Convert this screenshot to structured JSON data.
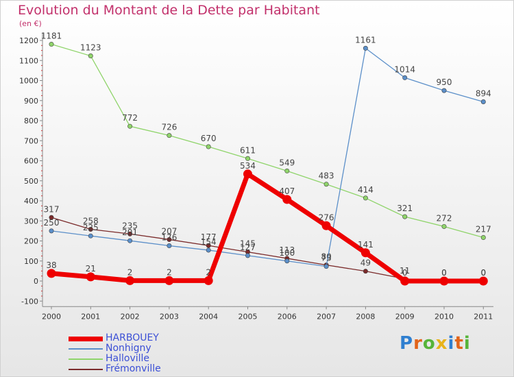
{
  "chart_data": {
    "type": "line",
    "title": "Evolution du Montant de la Dette par Habitant",
    "unit_label": "(en €)",
    "categories": [
      "2000",
      "2001",
      "2002",
      "2003",
      "2004",
      "2005",
      "2006",
      "2007",
      "2008",
      "2009",
      "2010",
      "2011"
    ],
    "y_ticks": [
      "-100",
      "0",
      "100",
      "200",
      "300",
      "400",
      "500",
      "600",
      "700",
      "800",
      "900",
      "1000",
      "1100",
      "1200"
    ],
    "ylim": [
      -100,
      1200
    ],
    "grid": false,
    "legend_position": "bottom-left",
    "series": [
      {
        "name": "Frémonville",
        "color": "#7a2a2a",
        "values": [
          317,
          258,
          235,
          207,
          177,
          145,
          113,
          80,
          49,
          11,
          0,
          0
        ],
        "labels": [
          "317",
          "258",
          "235",
          "207",
          "177",
          "145",
          "113",
          "80",
          "49",
          "11",
          "0",
          "0"
        ]
      },
      {
        "name": "Halloville",
        "color": "#8fd46a",
        "values": [
          1181,
          1123,
          772,
          726,
          670,
          611,
          549,
          483,
          414,
          321,
          272,
          217
        ],
        "labels": [
          "1181",
          "1123",
          "772",
          "726",
          "670",
          "611",
          "549",
          "483",
          "414",
          "321",
          "272",
          "217"
        ]
      },
      {
        "name": "Nonhigny",
        "color": "#5b8fc9",
        "values": [
          250,
          225,
          201,
          176,
          154,
          127,
          100,
          73,
          1161,
          1014,
          950,
          894
        ],
        "labels": [
          "250",
          "225",
          "201",
          "176",
          "154",
          "127",
          "100",
          "73",
          "1161",
          "1014",
          "950",
          "894"
        ]
      },
      {
        "name": "HARBOUEY",
        "color": "#ee0000",
        "values": [
          38,
          21,
          2,
          2,
          2,
          534,
          407,
          276,
          141,
          0,
          0,
          0
        ],
        "labels": [
          "38",
          "21",
          "2",
          "2",
          "2",
          "534",
          "407",
          "276",
          "141",
          "0",
          "0",
          "0"
        ]
      }
    ]
  },
  "logo": {
    "letters": [
      "P",
      "r",
      "o",
      "x",
      "i",
      "t",
      "i"
    ],
    "colors": [
      "#2f7fd0",
      "#e2641a",
      "#56b43a",
      "#e8b31a",
      "#2f7fd0",
      "#e2641a",
      "#56b43a"
    ]
  }
}
